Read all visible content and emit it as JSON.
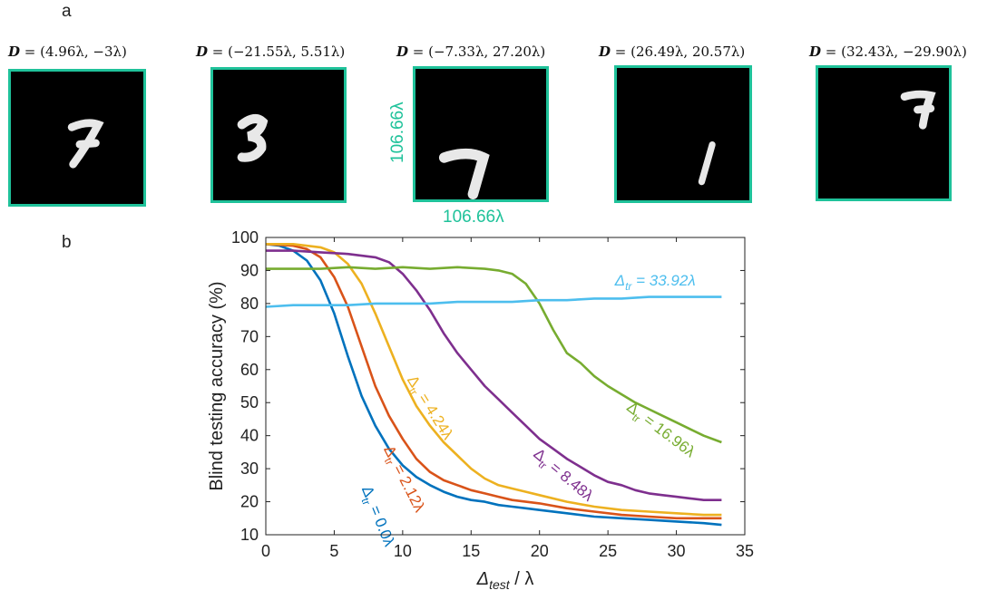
{
  "panels": {
    "a": "a",
    "b": "b"
  },
  "tiles": [
    {
      "prefix": "D",
      "coords": " = (4.96λ, −3λ)",
      "digit": "7"
    },
    {
      "prefix": "D",
      "coords": " = (−21.55λ, 5.51λ)",
      "digit": "3"
    },
    {
      "prefix": "D",
      "coords": " = (−7.33λ, 27.20λ)",
      "digit": "7"
    },
    {
      "prefix": "D",
      "coords": " = (26.49λ, 20.57λ)",
      "digit": "1"
    },
    {
      "prefix": "D",
      "coords": " = (32.43λ, −29.90λ)",
      "digit": "7"
    }
  ],
  "dimension": {
    "width": "106.66λ",
    "height": "106.66λ"
  },
  "colors": {
    "border": "#1fc29a"
  },
  "chart_data": {
    "type": "line",
    "xlabel_main": "Δ",
    "xlabel_sub": "test",
    "xlabel_tail": " / λ",
    "ylabel": "Blind testing accuracy (%)",
    "xlim": [
      0,
      35
    ],
    "ylim": [
      10,
      100
    ],
    "xticks": [
      0,
      5,
      10,
      15,
      20,
      25,
      30,
      35
    ],
    "yticks": [
      10,
      20,
      30,
      40,
      50,
      60,
      70,
      80,
      90,
      100
    ],
    "grid": false,
    "series": [
      {
        "name": "Δtr = 0.0λ",
        "label_prefix": "Δ",
        "label_sub": "tr",
        "label_tail": " = 0.0λ",
        "color": "#0072bd",
        "x": [
          0,
          1,
          2,
          3,
          4,
          5,
          6,
          7,
          8,
          9,
          10,
          11,
          12,
          13,
          14,
          15,
          16,
          17,
          18,
          19,
          20,
          22,
          24,
          26,
          28,
          30,
          32,
          33.3
        ],
        "y": [
          98,
          97.5,
          96,
          93,
          87,
          77,
          64,
          52,
          43,
          36,
          31,
          27.5,
          25,
          23,
          21.5,
          20.5,
          20,
          19,
          18.5,
          18,
          17.5,
          16.5,
          15.5,
          15,
          14.5,
          14,
          13.5,
          13
        ]
      },
      {
        "name": "Δtr = 2.12λ",
        "label_prefix": "Δ",
        "label_sub": "tr",
        "label_tail": " = 2.12λ",
        "color": "#d95319",
        "x": [
          0,
          2,
          3,
          4,
          5,
          6,
          7,
          8,
          9,
          10,
          11,
          12,
          13,
          14,
          15,
          16,
          17,
          18,
          19,
          20,
          22,
          24,
          26,
          28,
          30,
          32,
          33.3
        ],
        "y": [
          98,
          97.5,
          96.5,
          94,
          88,
          79,
          67,
          55,
          46,
          39,
          33,
          29,
          26.5,
          25,
          23.5,
          22.5,
          21.5,
          20.5,
          20,
          19.5,
          18,
          17,
          16,
          15.5,
          15,
          15,
          15
        ]
      },
      {
        "name": "Δtr = 4.24λ",
        "label_prefix": "Δ",
        "label_sub": "tr",
        "label_tail": " = 4.24λ",
        "color": "#edb120",
        "x": [
          0,
          2,
          4,
          5,
          6,
          7,
          8,
          9,
          10,
          11,
          12,
          13,
          14,
          15,
          16,
          17,
          18,
          19,
          20,
          22,
          24,
          26,
          28,
          30,
          32,
          33.3
        ],
        "y": [
          98,
          98,
          97,
          95.5,
          92,
          86,
          77,
          67,
          57,
          49,
          43,
          38,
          34,
          30,
          27,
          25,
          24,
          23,
          22,
          20,
          18.5,
          17.5,
          17,
          16.5,
          16,
          16
        ]
      },
      {
        "name": "Δtr = 8.48λ",
        "label_prefix": "Δ",
        "label_sub": "tr",
        "label_tail": " = 8.48λ",
        "color": "#7e2f8e",
        "x": [
          0,
          2,
          4,
          6,
          8,
          9,
          10,
          11,
          12,
          13,
          14,
          15,
          16,
          17,
          18,
          19,
          20,
          21,
          22,
          23,
          24,
          25,
          26,
          27,
          28,
          29,
          30,
          31,
          32,
          33.3
        ],
        "y": [
          96,
          96,
          95.5,
          95,
          94,
          92.5,
          89,
          84,
          78,
          71,
          65,
          60,
          55,
          51,
          47,
          43,
          39,
          36,
          33,
          30.5,
          28,
          26,
          25,
          23.5,
          22.5,
          22,
          21.5,
          21,
          20.5,
          20.5
        ]
      },
      {
        "name": "Δtr = 16.96λ",
        "label_prefix": "Δ",
        "label_sub": "tr",
        "label_tail": " = 16.96λ",
        "color": "#77ac30",
        "x": [
          0,
          2,
          4,
          6,
          8,
          10,
          12,
          14,
          16,
          17,
          18,
          19,
          20,
          21,
          22,
          23,
          24,
          25,
          26,
          27,
          28,
          29,
          30,
          31,
          32,
          33.3
        ],
        "y": [
          90.5,
          90.5,
          90.5,
          91,
          90.5,
          91,
          90.5,
          91,
          90.5,
          90,
          89,
          86,
          80,
          72,
          65,
          62,
          58,
          55,
          52.5,
          50,
          48,
          46,
          44,
          42,
          40,
          38
        ]
      },
      {
        "name": "Δtr = 33.92λ",
        "label_prefix": "Δ",
        "label_sub": "tr",
        "label_tail": " = 33.92λ",
        "color": "#4dbeee",
        "x": [
          0,
          2,
          4,
          6,
          8,
          10,
          12,
          14,
          16,
          18,
          20,
          22,
          24,
          26,
          28,
          30,
          32,
          33.3
        ],
        "y": [
          79,
          79.5,
          79.5,
          79.5,
          80,
          80,
          80,
          80.5,
          80.5,
          80.5,
          81,
          81,
          81.5,
          81.5,
          82,
          82,
          82,
          82
        ]
      }
    ]
  }
}
